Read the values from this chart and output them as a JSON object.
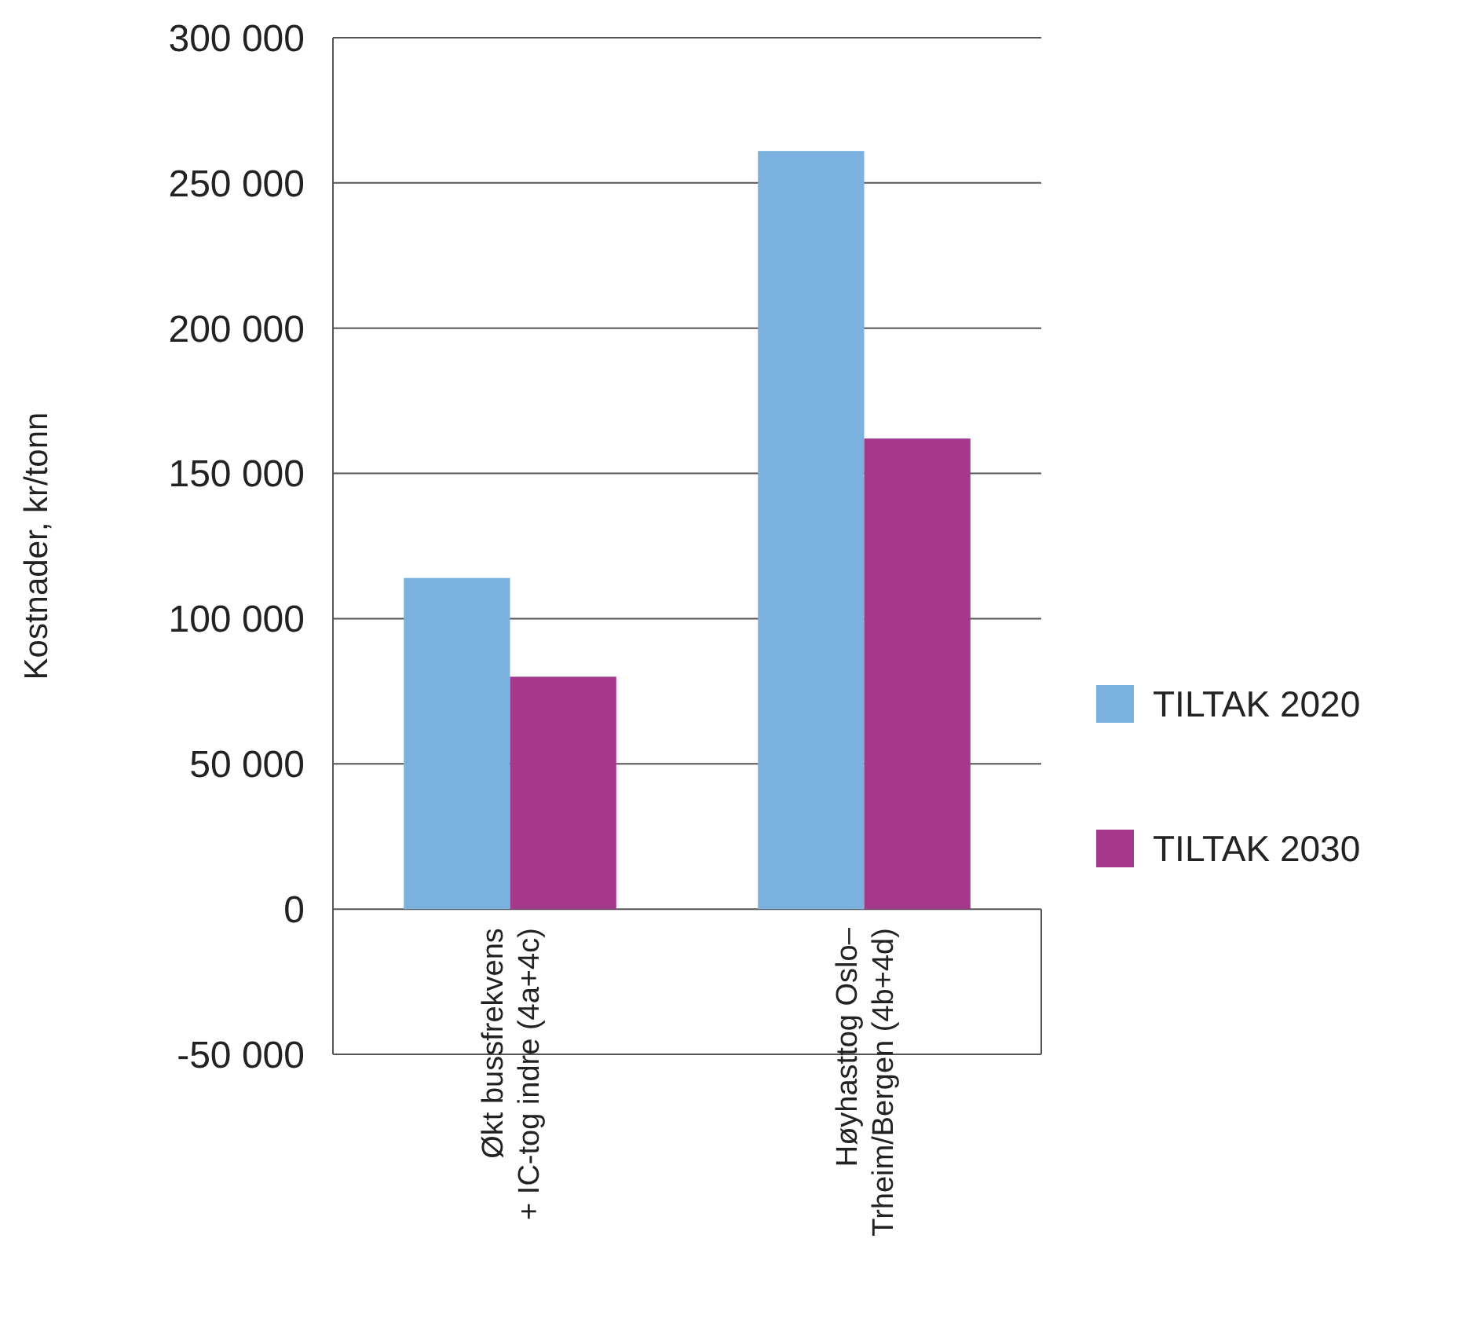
{
  "chart_data": {
    "type": "bar",
    "ylabel": "Kostnader, kr/tonn",
    "categories": [
      "Økt bussfrekvens\n+ IC-tog indre (4a+4c)",
      "Høyhasttog Oslo–\nTrheim/Bergen (4b+4d)"
    ],
    "series": [
      {
        "name": "TILTAK 2020",
        "color": "#7ab1de",
        "values": [
          114000,
          261000
        ]
      },
      {
        "name": "TILTAK 2030",
        "color": "#a5388a",
        "values": [
          80000,
          162000
        ]
      }
    ],
    "ylim": [
      -50000,
      300000
    ],
    "yticks": [
      {
        "value": -50000,
        "label": "-50 000"
      },
      0,
      {
        "value": 50000,
        "label": "50 000"
      },
      {
        "value": 100000,
        "label": "100 000"
      },
      {
        "value": 150000,
        "label": "150 000"
      },
      {
        "value": 200000,
        "label": "200 000"
      },
      {
        "value": 250000,
        "label": "250 000"
      },
      {
        "value": 300000,
        "label": "300 000"
      }
    ],
    "grid": "y",
    "legend": "right"
  }
}
